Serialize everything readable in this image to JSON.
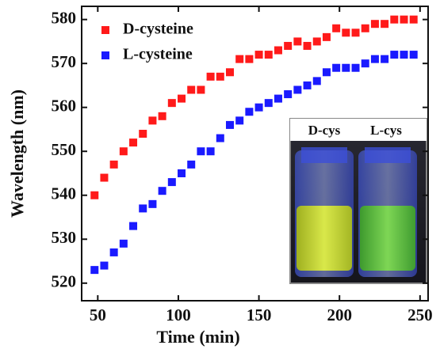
{
  "chart_data": {
    "type": "scatter",
    "x_label": "Time (min)",
    "y_label": "Wavelength (nm)",
    "x": [
      48,
      54,
      60,
      66,
      72,
      78,
      84,
      90,
      96,
      102,
      108,
      114,
      120,
      126,
      132,
      138,
      144,
      150,
      156,
      162,
      168,
      174,
      180,
      186,
      192,
      198,
      204,
      210,
      216,
      222,
      228,
      234,
      240,
      246
    ],
    "series": [
      {
        "name": "D-cysteine",
        "color": "#ff1a1a",
        "values": [
          540,
          544,
          547,
          550,
          552,
          554,
          557,
          558,
          561,
          562,
          564,
          564,
          567,
          567,
          568,
          571,
          571,
          572,
          572,
          573,
          574,
          575,
          574,
          575,
          576,
          578,
          577,
          577,
          578,
          579,
          579,
          580,
          580,
          580
        ]
      },
      {
        "name": "L-cysteine",
        "color": "#1a1aff",
        "values": [
          523,
          524,
          527,
          529,
          533,
          537,
          538,
          541,
          543,
          545,
          547,
          550,
          550,
          553,
          556,
          557,
          559,
          560,
          561,
          562,
          563,
          564,
          565,
          566,
          568,
          569,
          569,
          569,
          570,
          571,
          571,
          572,
          572,
          572
        ]
      }
    ],
    "xlim": [
      40,
      255
    ],
    "ylim": [
      516,
      583
    ],
    "xticks": [
      50,
      100,
      150,
      200,
      250
    ],
    "yticks": [
      520,
      530,
      540,
      550,
      560,
      570,
      580
    ],
    "legend": "upper left",
    "annotations": [
      "D-cys",
      "L-cys"
    ]
  }
}
